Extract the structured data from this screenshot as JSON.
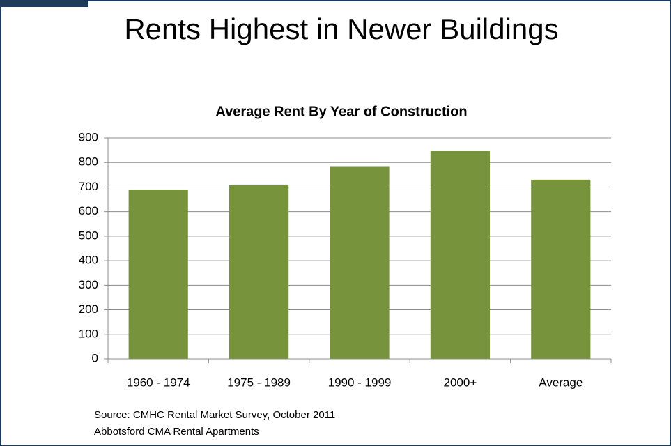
{
  "slide_title": "Rents Highest in Newer Buildings",
  "chart_data": {
    "type": "bar",
    "title": "Average Rent By Year of Construction",
    "categories": [
      "1960 - 1974",
      "1975 - 1989",
      "1990 - 1999",
      "2000+",
      "Average"
    ],
    "values": [
      690,
      710,
      785,
      848,
      730
    ],
    "color": "#77933c",
    "ylim": [
      0,
      900
    ],
    "yticks": [
      0,
      100,
      200,
      300,
      400,
      500,
      600,
      700,
      800,
      900
    ],
    "grid": true
  },
  "source": [
    "Source:  CMHC Rental Market Survey, October 2011",
    "Abbotsford CMA Rental Apartments"
  ]
}
